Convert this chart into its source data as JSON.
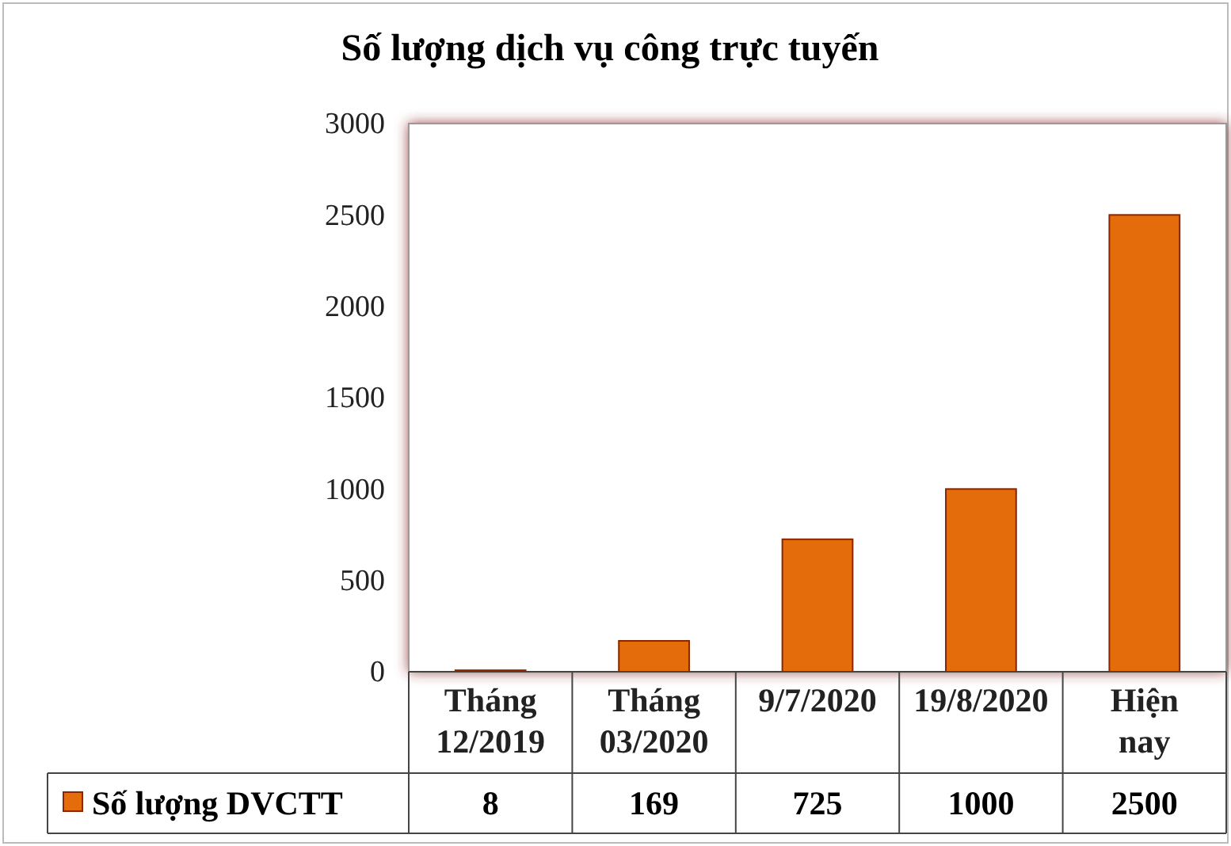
{
  "chart_data": {
    "type": "bar",
    "title": "Số lượng dịch vụ công trực tuyến",
    "categories": [
      "Tháng 12/2019",
      "Tháng 03/2020",
      "9/7/2020",
      "19/8/2020",
      "Hiện nay"
    ],
    "series": [
      {
        "name": "Số lượng DVCTT",
        "color": "#e46c0a",
        "values": [
          8,
          169,
          725,
          1000,
          2500
        ]
      }
    ],
    "ylim": [
      0,
      3000
    ],
    "yticks": [
      0,
      500,
      1000,
      1500,
      2000,
      2500,
      3000
    ],
    "grid": false,
    "legend": "bottom",
    "data_labels": true
  }
}
